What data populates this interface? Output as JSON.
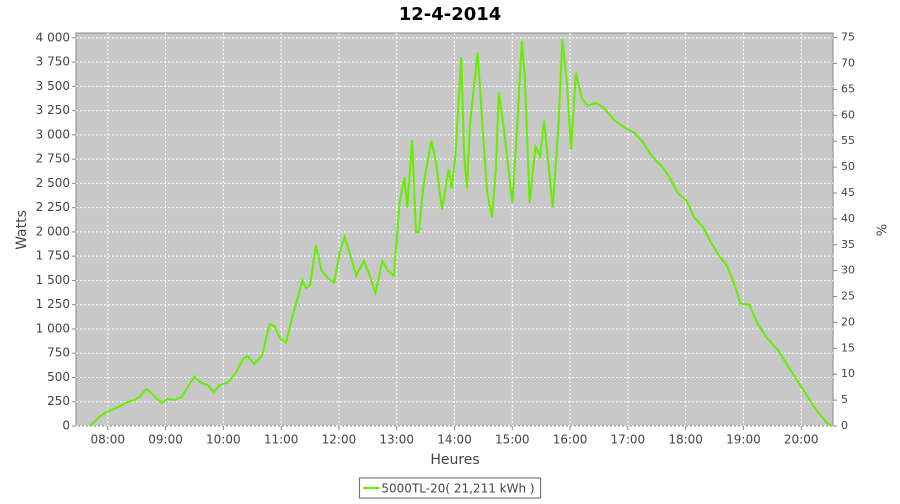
{
  "chart_data": {
    "type": "line",
    "title": "12-4-2014",
    "xlabel": "Heures",
    "ylabel": "Watts",
    "y2label": "%",
    "x": [
      "07:41",
      "07:47",
      "07:52",
      "08:00",
      "08:12",
      "08:21",
      "08:28",
      "08:33",
      "08:40",
      "08:44",
      "08:49",
      "08:56",
      "09:02",
      "09:10",
      "09:17",
      "09:23",
      "09:30",
      "09:36",
      "09:44",
      "09:50",
      "09:56",
      "10:05",
      "10:13",
      "10:21",
      "10:25",
      "10:32",
      "10:40",
      "10:48",
      "10:53",
      "10:59",
      "11:05",
      "11:11",
      "11:18",
      "11:22",
      "11:26",
      "11:30",
      "11:36",
      "11:42",
      "11:49",
      "11:55",
      "12:01",
      "12:06",
      "12:12",
      "12:18",
      "12:26",
      "12:32",
      "12:38",
      "12:45",
      "12:51",
      "12:57",
      "13:03",
      "13:08",
      "13:11",
      "13:16",
      "13:20",
      "13:23",
      "13:28",
      "13:36",
      "13:41",
      "13:47",
      "13:54",
      "13:57",
      "14:01",
      "14:07",
      "14:10",
      "14:13",
      "14:16",
      "14:24",
      "14:29",
      "14:34",
      "14:39",
      "14:43",
      "14:46",
      "14:52",
      "15:00",
      "15:04",
      "15:10",
      "15:13",
      "15:18",
      "15:24",
      "15:29",
      "15:33",
      "15:42",
      "15:48",
      "15:52",
      "15:57",
      "16:01",
      "16:06",
      "16:12",
      "16:18",
      "16:27",
      "16:35",
      "16:46",
      "16:56",
      "17:07",
      "17:16",
      "17:25",
      "17:35",
      "17:44",
      "17:52",
      "18:01",
      "18:09",
      "18:18",
      "18:27",
      "18:35",
      "18:43",
      "18:51",
      "18:57",
      "19:06",
      "19:15",
      "19:25",
      "19:36",
      "19:46",
      "19:57",
      "20:07",
      "20:13",
      "20:21",
      "20:27",
      "20:32"
    ],
    "series": [
      {
        "name": "5000TL-20( 21,211 kWh )",
        "color": "#66ee00",
        "values": [
          0,
          50,
          100,
          150,
          200,
          250,
          270,
          300,
          380,
          350,
          300,
          240,
          280,
          270,
          300,
          400,
          510,
          450,
          420,
          350,
          420,
          450,
          550,
          700,
          720,
          640,
          720,
          1050,
          1030,
          900,
          860,
          1100,
          1350,
          1500,
          1420,
          1450,
          1860,
          1600,
          1520,
          1480,
          1800,
          1950,
          1750,
          1550,
          1700,
          1550,
          1370,
          1700,
          1600,
          1550,
          2300,
          2560,
          2250,
          2950,
          2000,
          2000,
          2500,
          2940,
          2700,
          2230,
          2650,
          2450,
          2800,
          3800,
          2800,
          2450,
          3100,
          3850,
          3100,
          2400,
          2150,
          2650,
          3440,
          3000,
          2300,
          2900,
          3970,
          3600,
          2300,
          2880,
          2780,
          3150,
          2250,
          3100,
          3990,
          3500,
          2850,
          3640,
          3380,
          3300,
          3330,
          3280,
          3150,
          3080,
          3020,
          2920,
          2780,
          2680,
          2550,
          2400,
          2320,
          2150,
          2050,
          1880,
          1750,
          1650,
          1450,
          1260,
          1250,
          1050,
          900,
          780,
          620,
          450,
          300,
          200,
          100,
          30,
          0
        ]
      }
    ],
    "xlim": [
      "07:27",
      "20:33"
    ],
    "xticks": [
      "08:00",
      "09:00",
      "10:00",
      "11:00",
      "12:00",
      "13:00",
      "14:00",
      "15:00",
      "16:00",
      "17:00",
      "18:00",
      "19:00",
      "20:00"
    ],
    "ylim": [
      0,
      4050
    ],
    "yticks": [
      0,
      250,
      500,
      750,
      {
        "value": 1000,
        "label": "1 000"
      },
      {
        "value": 1250,
        "label": "1 250"
      },
      {
        "value": 1500,
        "label": "1 500"
      },
      {
        "value": 1750,
        "label": "1 750"
      },
      {
        "value": 2000,
        "label": "2 000"
      },
      {
        "value": 2250,
        "label": "2 250"
      },
      {
        "value": 2500,
        "label": "2 500"
      },
      {
        "value": 2750,
        "label": "2 750"
      },
      {
        "value": 3000,
        "label": "3 000"
      },
      {
        "value": 3250,
        "label": "3 250"
      },
      {
        "value": 3500,
        "label": "3 500"
      },
      {
        "value": 3750,
        "label": "3 750"
      },
      {
        "value": 4000,
        "label": "4 000"
      }
    ],
    "y2lim": [
      0,
      75.9
    ],
    "y2ticks": [
      0,
      5,
      10,
      15,
      20,
      25,
      30,
      35,
      40,
      45,
      50,
      55,
      60,
      65,
      70,
      75
    ],
    "grid": true,
    "legend": "bottom"
  }
}
